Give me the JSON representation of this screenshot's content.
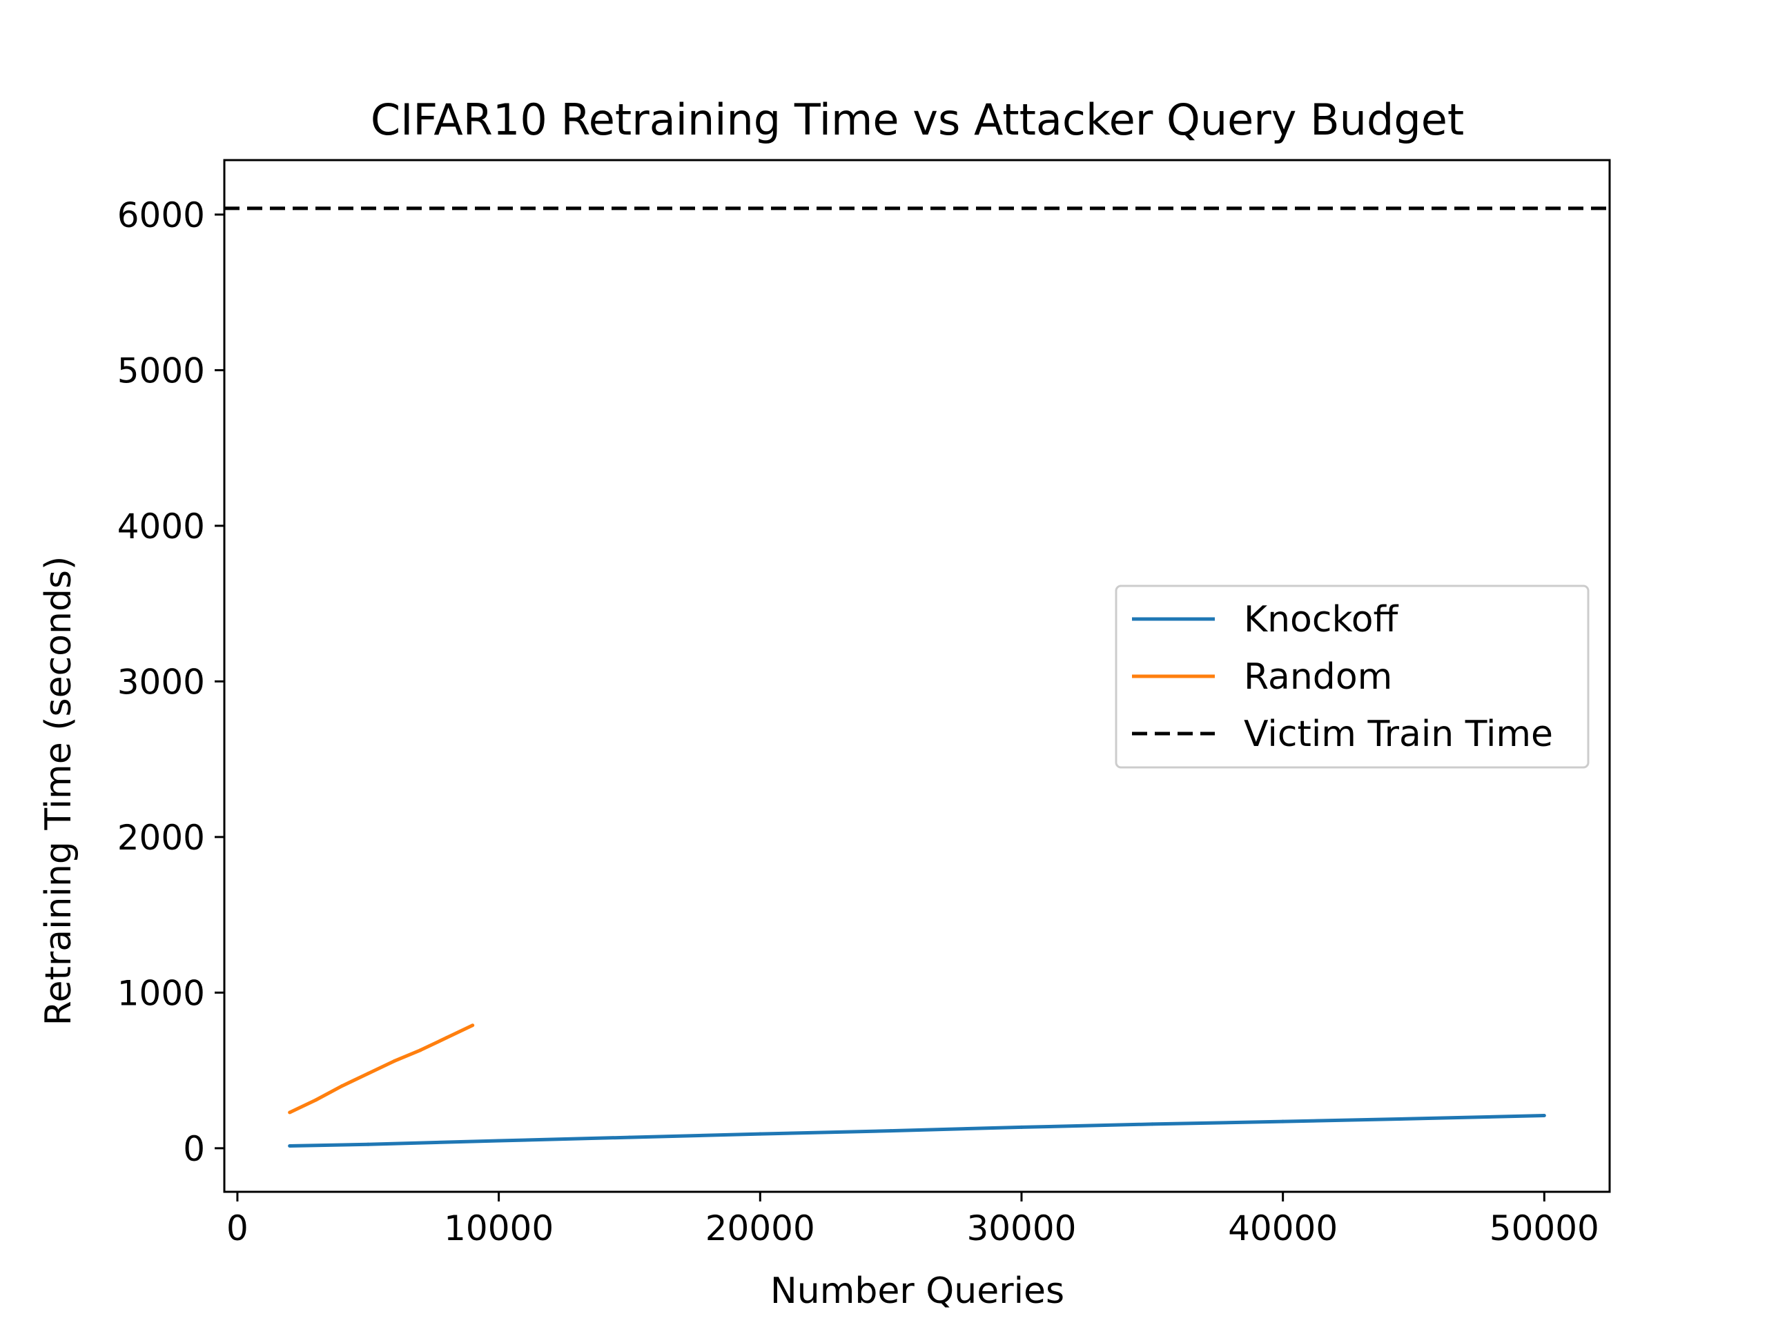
{
  "chart_data": {
    "type": "line",
    "title": "CIFAR10 Retraining Time vs Attacker Query Budget",
    "xlabel": "Number Queries",
    "ylabel": "Retraining Time (seconds)",
    "xlim": [
      -500,
      52500
    ],
    "ylim": [
      -280,
      6350
    ],
    "xticks": [
      0,
      10000,
      20000,
      30000,
      40000,
      50000
    ],
    "xtick_labels": [
      "0",
      "10000",
      "20000",
      "30000",
      "40000",
      "50000"
    ],
    "yticks": [
      0,
      1000,
      2000,
      3000,
      4000,
      5000,
      6000
    ],
    "ytick_labels": [
      "0",
      "1000",
      "2000",
      "3000",
      "4000",
      "5000",
      "6000"
    ],
    "grid": false,
    "legend_position": "center-right",
    "series": [
      {
        "name": "Knockoff",
        "color": "#1f77b4",
        "style": "solid",
        "x": [
          2000,
          5000,
          10000,
          15000,
          20000,
          25000,
          30000,
          35000,
          40000,
          45000,
          50000
        ],
        "y": [
          15,
          25,
          48,
          70,
          92,
          112,
          135,
          155,
          172,
          190,
          210
        ]
      },
      {
        "name": "Random",
        "color": "#ff7f0e",
        "style": "solid",
        "x": [
          2000,
          3000,
          4000,
          5000,
          6000,
          7000,
          8000,
          9000
        ],
        "y": [
          230,
          310,
          400,
          480,
          560,
          630,
          710,
          790
        ]
      }
    ],
    "hlines": [
      {
        "name": "Victim Train Time",
        "color": "#000000",
        "style": "dashed",
        "y": 6040
      }
    ]
  }
}
